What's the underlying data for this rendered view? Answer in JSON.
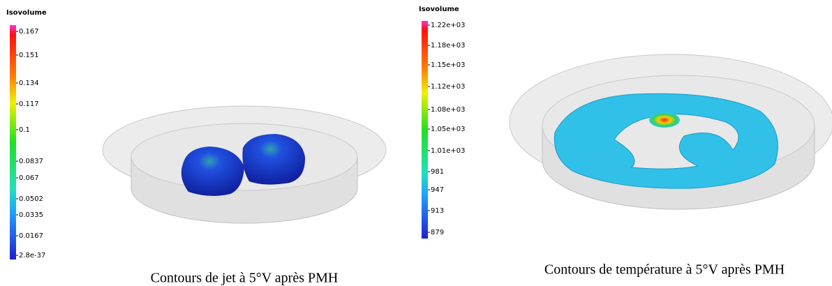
{
  "panels": [
    {
      "legend": {
        "title": "Isovolume",
        "labels": [
          "0.167",
          "0.151",
          "0.134",
          "0.117",
          "0.1",
          "0.0837",
          "0.067",
          "0.0502",
          "0.0335",
          "0.0167",
          "2.8e-37"
        ]
      },
      "caption": "Contours de jet à 5°V après PMH"
    },
    {
      "legend": {
        "title": "Isovolume",
        "labels": [
          "1.22e+03",
          "1.18e+03",
          "1.15e+03",
          "1.12e+03",
          "1.08e+03",
          "1.05e+03",
          "1.01e+03",
          "981",
          "947",
          "913",
          "879"
        ]
      },
      "caption": "Contours de température à 5°V après PMH"
    }
  ]
}
